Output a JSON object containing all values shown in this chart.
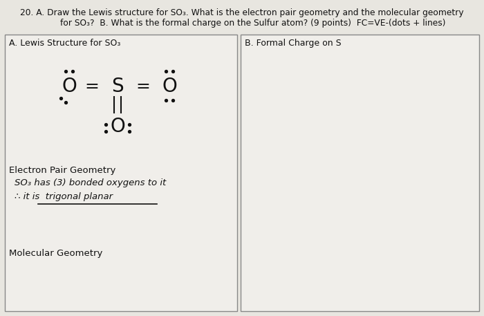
{
  "bg_color": "#e8e6e0",
  "box_bg": "#f0eeea",
  "title_line1": "20. A. Draw the Lewis structure for SO₃. What is the electron pair geometry and the molecular geometry",
  "title_line2": "        for SO₃?  B. What is the formal charge on the Sulfur atom? (9 points)  FC=VE-(dots + lines)",
  "box_a_label": "A. Lewis Structure for SO₃",
  "box_b_label": "B. Formal Charge on S",
  "epg_label": "Electron Pair Geometry",
  "epg_line1": "SO₃ has (3) bonded oxygens to it",
  "epg_line2": "∴ it is  trigonal planar",
  "mol_geom_label": "Molecular Geometry",
  "text_color": "#111111",
  "box_edge_color": "#888888",
  "figw": 7.0,
  "figh": 4.57,
  "dpi": 100
}
